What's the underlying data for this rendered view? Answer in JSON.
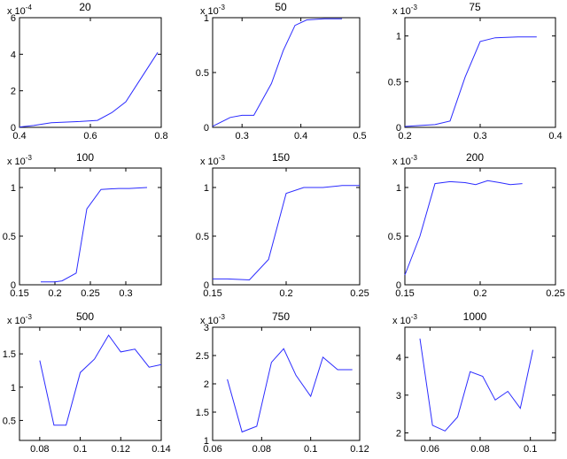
{
  "chart_data": [
    {
      "type": "line",
      "title": "20",
      "multiplier": {
        "base": "x 10",
        "exp": "-4"
      },
      "xlim": [
        0.4,
        0.8
      ],
      "ylim": [
        0,
        6
      ],
      "xticks": [
        {
          "v": 0.4,
          "label": "0.4"
        },
        {
          "v": 0.6,
          "label": "0.6"
        },
        {
          "v": 0.8,
          "label": "0.8"
        }
      ],
      "yticks": [
        {
          "v": 0,
          "label": "0"
        },
        {
          "v": 2,
          "label": "2"
        },
        {
          "v": 4,
          "label": "4"
        },
        {
          "v": 6,
          "label": "6"
        }
      ],
      "x": [
        0.4,
        0.44,
        0.49,
        0.52,
        0.57,
        0.62,
        0.66,
        0.7,
        0.74,
        0.79
      ],
      "y": [
        0.02,
        0.1,
        0.25,
        0.28,
        0.32,
        0.38,
        0.8,
        1.4,
        2.6,
        4.1
      ],
      "color": "#2b2bff"
    },
    {
      "type": "line",
      "title": "50",
      "multiplier": {
        "base": "x 10",
        "exp": "-3"
      },
      "xlim": [
        0.25,
        0.5
      ],
      "ylim": [
        0,
        1
      ],
      "xticks": [
        {
          "v": 0.3,
          "label": "0.3"
        },
        {
          "v": 0.4,
          "label": "0.4"
        },
        {
          "v": 0.5,
          "label": "0.5"
        }
      ],
      "yticks": [
        {
          "v": 0,
          "label": "0"
        },
        {
          "v": 0.5,
          "label": "0.5"
        },
        {
          "v": 1,
          "label": "1"
        }
      ],
      "x": [
        0.25,
        0.28,
        0.3,
        0.32,
        0.35,
        0.37,
        0.39,
        0.41,
        0.44,
        0.47
      ],
      "y": [
        0.01,
        0.09,
        0.11,
        0.11,
        0.4,
        0.7,
        0.93,
        0.98,
        0.99,
        0.99
      ],
      "color": "#2b2bff"
    },
    {
      "type": "line",
      "title": "75",
      "multiplier": {
        "base": "x 10",
        "exp": "-3"
      },
      "xlim": [
        0.2,
        0.4
      ],
      "ylim": [
        0,
        1.2
      ],
      "xticks": [
        {
          "v": 0.2,
          "label": "0.2"
        },
        {
          "v": 0.3,
          "label": "0.3"
        },
        {
          "v": 0.4,
          "label": "0.4"
        }
      ],
      "yticks": [
        {
          "v": 0,
          "label": "0"
        },
        {
          "v": 0.5,
          "label": "0.5"
        },
        {
          "v": 1,
          "label": "1"
        }
      ],
      "x": [
        0.2,
        0.22,
        0.24,
        0.26,
        0.28,
        0.3,
        0.32,
        0.35,
        0.375
      ],
      "y": [
        0.01,
        0.02,
        0.03,
        0.07,
        0.55,
        0.94,
        0.98,
        0.99,
        0.99
      ],
      "color": "#2b2bff"
    },
    {
      "type": "line",
      "title": "100",
      "multiplier": {
        "base": "x 10",
        "exp": "-3"
      },
      "xlim": [
        0.15,
        0.35
      ],
      "ylim": [
        0,
        1.2
      ],
      "xticks": [
        {
          "v": 0.15,
          "label": "0.15"
        },
        {
          "v": 0.2,
          "label": "0.2"
        },
        {
          "v": 0.25,
          "label": "0.25"
        },
        {
          "v": 0.3,
          "label": "0.3"
        }
      ],
      "yticks": [
        {
          "v": 0,
          "label": "0"
        },
        {
          "v": 0.5,
          "label": "0.5"
        },
        {
          "v": 1,
          "label": "1"
        }
      ],
      "x": [
        0.18,
        0.2,
        0.21,
        0.23,
        0.245,
        0.265,
        0.29,
        0.305,
        0.33
      ],
      "y": [
        0.03,
        0.03,
        0.04,
        0.12,
        0.78,
        0.98,
        0.99,
        0.99,
        1.0
      ],
      "color": "#2b2bff"
    },
    {
      "type": "line",
      "title": "150",
      "multiplier": {
        "base": "x 10",
        "exp": "-3"
      },
      "xlim": [
        0.15,
        0.25
      ],
      "ylim": [
        0,
        1.2
      ],
      "xticks": [
        {
          "v": 0.15,
          "label": "0.15"
        },
        {
          "v": 0.2,
          "label": "0.2"
        },
        {
          "v": 0.25,
          "label": "0.25"
        }
      ],
      "yticks": [
        {
          "v": 0,
          "label": "0"
        },
        {
          "v": 0.5,
          "label": "0.5"
        },
        {
          "v": 1,
          "label": "1"
        }
      ],
      "x": [
        0.15,
        0.16,
        0.175,
        0.188,
        0.2,
        0.212,
        0.225,
        0.238,
        0.25
      ],
      "y": [
        0.06,
        0.06,
        0.05,
        0.26,
        0.94,
        1.0,
        1.0,
        1.02,
        1.02
      ],
      "color": "#2b2bff"
    },
    {
      "type": "line",
      "title": "200",
      "multiplier": {
        "base": "x 10",
        "exp": "-3"
      },
      "xlim": [
        0.15,
        0.25
      ],
      "ylim": [
        0,
        1.2
      ],
      "xticks": [
        {
          "v": 0.15,
          "label": "0.15"
        },
        {
          "v": 0.2,
          "label": "0.2"
        },
        {
          "v": 0.25,
          "label": "0.25"
        }
      ],
      "yticks": [
        {
          "v": 0,
          "label": "0"
        },
        {
          "v": 0.5,
          "label": "0.5"
        },
        {
          "v": 1,
          "label": "1"
        }
      ],
      "x": [
        0.15,
        0.16,
        0.17,
        0.18,
        0.19,
        0.197,
        0.205,
        0.213,
        0.22,
        0.228
      ],
      "y": [
        0.1,
        0.5,
        1.04,
        1.06,
        1.05,
        1.03,
        1.07,
        1.05,
        1.03,
        1.04
      ],
      "color": "#2b2bff"
    },
    {
      "type": "line",
      "title": "500",
      "multiplier": {
        "base": "x 10",
        "exp": "-3"
      },
      "xlim": [
        0.07,
        0.14
      ],
      "ylim": [
        0.2,
        1.9
      ],
      "xticks": [
        {
          "v": 0.08,
          "label": "0.08"
        },
        {
          "v": 0.1,
          "label": "0.1"
        },
        {
          "v": 0.12,
          "label": "0.12"
        },
        {
          "v": 0.14,
          "label": "0.14"
        }
      ],
      "yticks": [
        {
          "v": 0.5,
          "label": "0.5"
        },
        {
          "v": 1,
          "label": "1"
        },
        {
          "v": 1.5,
          "label": "1.5"
        }
      ],
      "x": [
        0.08,
        0.087,
        0.093,
        0.1,
        0.107,
        0.114,
        0.12,
        0.127,
        0.134,
        0.14
      ],
      "y": [
        1.4,
        0.43,
        0.43,
        1.22,
        1.42,
        1.78,
        1.53,
        1.57,
        1.3,
        1.34
      ],
      "color": "#2b2bff"
    },
    {
      "type": "line",
      "title": "750",
      "multiplier": {
        "base": "x 10",
        "exp": "-3"
      },
      "xlim": [
        0.06,
        0.12
      ],
      "ylim": [
        1,
        3
      ],
      "xticks": [
        {
          "v": 0.06,
          "label": "0.06"
        },
        {
          "v": 0.08,
          "label": "0.08"
        },
        {
          "v": 0.1,
          "label": "0.1"
        },
        {
          "v": 0.12,
          "label": "0.12"
        }
      ],
      "yticks": [
        {
          "v": 1,
          "label": "1"
        },
        {
          "v": 1.5,
          "label": "1.5"
        },
        {
          "v": 2,
          "label": "2"
        },
        {
          "v": 2.5,
          "label": "2.5"
        },
        {
          "v": 3,
          "label": "3"
        }
      ],
      "x": [
        0.066,
        0.072,
        0.078,
        0.084,
        0.089,
        0.094,
        0.1,
        0.105,
        0.111,
        0.117
      ],
      "y": [
        2.08,
        1.15,
        1.25,
        2.38,
        2.62,
        2.15,
        1.78,
        2.47,
        2.25,
        2.25
      ],
      "color": "#2b2bff"
    },
    {
      "type": "line",
      "title": "1000",
      "multiplier": {
        "base": "x 10",
        "exp": "-3"
      },
      "xlim": [
        0.05,
        0.11
      ],
      "ylim": [
        1.8,
        4.8
      ],
      "xticks": [
        {
          "v": 0.06,
          "label": "0.06"
        },
        {
          "v": 0.08,
          "label": "0.08"
        },
        {
          "v": 0.1,
          "label": "0.1"
        }
      ],
      "yticks": [
        {
          "v": 2,
          "label": "2"
        },
        {
          "v": 3,
          "label": "3"
        },
        {
          "v": 4,
          "label": "4"
        }
      ],
      "x": [
        0.056,
        0.061,
        0.066,
        0.071,
        0.076,
        0.081,
        0.086,
        0.091,
        0.096,
        0.101
      ],
      "y": [
        4.5,
        2.2,
        2.05,
        2.42,
        3.62,
        3.5,
        2.87,
        3.1,
        2.65,
        4.2
      ],
      "color": "#2b2bff"
    }
  ]
}
